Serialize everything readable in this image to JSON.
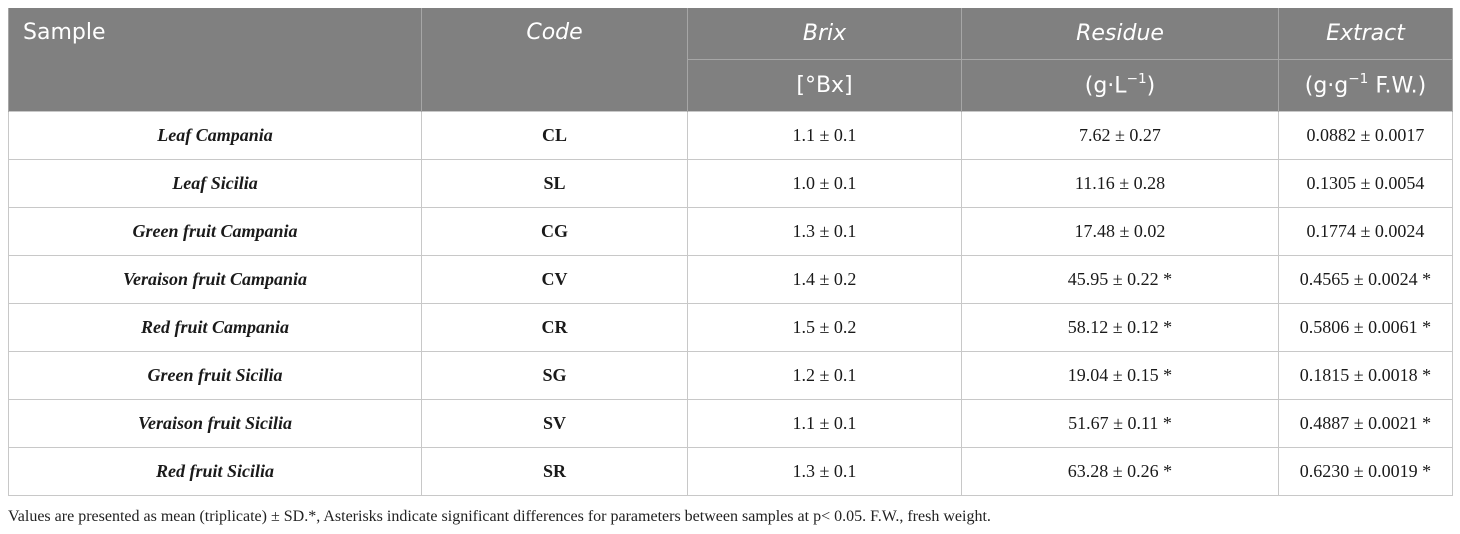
{
  "table": {
    "headers": {
      "sample": "Sample",
      "code": "Code",
      "brix": "Brix",
      "brix_unit": "[°Bx]",
      "residue": "Residue",
      "residue_unit_pre": "(g·L",
      "residue_unit_sup": "−1",
      "residue_unit_post": ")",
      "extract": "Extract",
      "extract_unit_pre": "(g·g",
      "extract_unit_sup": "−1",
      "extract_unit_post": " F.W.)"
    },
    "rows": [
      {
        "sample": "Leaf Campania",
        "code": "CL",
        "brix": "1.1 ± 0.1",
        "residue": "7.62 ± 0.27",
        "extract": "0.0882 ± 0.0017"
      },
      {
        "sample": "Leaf Sicilia",
        "code": "SL",
        "brix": "1.0 ± 0.1",
        "residue": "11.16 ± 0.28",
        "extract": "0.1305 ± 0.0054"
      },
      {
        "sample": "Green fruit Campania",
        "code": "CG",
        "brix": "1.3 ± 0.1",
        "residue": "17.48 ± 0.02",
        "extract": "0.1774 ± 0.0024"
      },
      {
        "sample": "Veraison fruit Campania",
        "code": "CV",
        "brix": "1.4 ± 0.2",
        "residue": "45.95 ± 0.22 *",
        "extract": "0.4565 ± 0.0024 *"
      },
      {
        "sample": "Red fruit Campania",
        "code": "CR",
        "brix": "1.5 ± 0.2",
        "residue": "58.12 ± 0.12 *",
        "extract": "0.5806 ± 0.0061 *"
      },
      {
        "sample": "Green fruit Sicilia",
        "code": "SG",
        "brix": "1.2 ± 0.1",
        "residue": "19.04 ± 0.15 *",
        "extract": "0.1815 ± 0.0018 *"
      },
      {
        "sample": "Veraison fruit Sicilia",
        "code": "SV",
        "brix": "1.1 ± 0.1",
        "residue": "51.67 ± 0.11 *",
        "extract": "0.4887 ± 0.0021 *"
      },
      {
        "sample": "Red fruit Sicilia",
        "code": "SR",
        "brix": "1.3 ± 0.1",
        "residue": "63.28 ± 0.26 *",
        "extract": "0.6230 ± 0.0019 *"
      }
    ]
  },
  "footnote": "Values are presented as mean (triplicate) ± SD.*, Asterisks indicate significant differences for parameters between samples at p< 0.05. F.W., fresh weight."
}
